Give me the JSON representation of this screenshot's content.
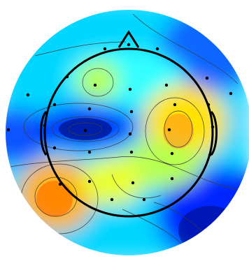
{
  "chart_data": {
    "type": "heatmap",
    "title": "",
    "xlabel": "",
    "ylabel": "",
    "colormap": [
      "#00007f",
      "#0000ff",
      "#007fff",
      "#00ffff",
      "#7fff7f",
      "#ffff00",
      "#ff7f00",
      "#ff0000"
    ],
    "grid": false,
    "legend": "none",
    "extremes": [
      {
        "kind": "negative",
        "level": 0.05
      },
      {
        "kind": "positive",
        "level": 0.85
      }
    ],
    "electrode_count": 32
  }
}
